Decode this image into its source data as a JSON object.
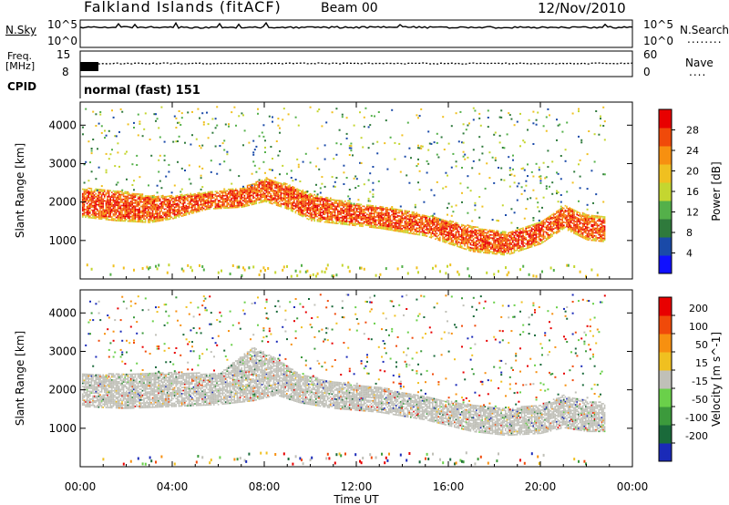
{
  "header": {
    "station": "Falkland Islands (fitACF)",
    "beam": "Beam 00",
    "date": "12/Nov/2010"
  },
  "panels": {
    "nsky": {
      "label": "N.Sky",
      "ticks": [
        "10^5",
        "10^0"
      ],
      "right_label": "N.Search",
      "right_ticks": [
        "10^5",
        "10^0"
      ],
      "right_dots": "........"
    },
    "freq": {
      "label_top": "Freq.",
      "label_bottom": "[MHz]",
      "ticks": [
        "15",
        "8"
      ],
      "right_label": "Nave",
      "right_ticks": [
        "60",
        "0"
      ],
      "right_dots": "...."
    },
    "cpid": {
      "label": "CPID",
      "value": "normal (fast) 151"
    }
  },
  "chart_data": [
    {
      "type": "heatmap",
      "title": "Power",
      "xlabel": "",
      "ylabel": "Slant Range [km]",
      "x_ticks": [
        "00:00",
        "04:00",
        "08:00",
        "12:00",
        "16:00",
        "20:00",
        "00:00"
      ],
      "y_ticks": [
        1000,
        2000,
        3000,
        4000
      ],
      "ylim": [
        0,
        4600
      ],
      "xlim_hours": [
        0,
        24
      ],
      "colorbar": {
        "label": "Power [dB]",
        "ticks": [
          4,
          8,
          12,
          16,
          20,
          24,
          28
        ],
        "range": [
          0,
          32
        ],
        "colors": [
          "#1010ff",
          "#1a4aa8",
          "#2f7a3c",
          "#54b04a",
          "#c4d630",
          "#f0c020",
          "#f79010",
          "#f04a0a",
          "#e80000"
        ]
      },
      "bands": [
        {
          "name": "main",
          "points": [
            [
              0.0,
              1600,
              2350
            ],
            [
              1.5,
              1500,
              2300
            ],
            [
              3.0,
              1450,
              2150
            ],
            [
              4.0,
              1550,
              2150
            ],
            [
              5.5,
              1800,
              2250
            ],
            [
              7.0,
              1850,
              2350
            ],
            [
              8.0,
              2000,
              2600
            ],
            [
              9.0,
              1800,
              2450
            ],
            [
              10.0,
              1500,
              2200
            ],
            [
              11.5,
              1400,
              2000
            ],
            [
              13.0,
              1300,
              1900
            ],
            [
              15.0,
              1100,
              1650
            ],
            [
              17.0,
              700,
              1350
            ],
            [
              18.5,
              600,
              1200
            ],
            [
              20.0,
              900,
              1500
            ],
            [
              21.0,
              1300,
              1900
            ],
            [
              22.0,
              1000,
              1650
            ],
            [
              22.8,
              950,
              1600
            ]
          ]
        }
      ]
    },
    {
      "type": "heatmap",
      "title": "Velocity",
      "xlabel": "Time UT",
      "ylabel": "Slant Range [km]",
      "x_ticks": [
        "00:00",
        "04:00",
        "08:00",
        "12:00",
        "16:00",
        "20:00",
        "00:00"
      ],
      "y_ticks": [
        1000,
        2000,
        3000,
        4000
      ],
      "ylim": [
        0,
        4600
      ],
      "xlim_hours": [
        0,
        24
      ],
      "colorbar": {
        "label": "Velocity [m s^-1]",
        "ticks": [
          200,
          100,
          50,
          15,
          -15,
          -50,
          -100,
          -200
        ],
        "colors": [
          "#1a2ab8",
          "#1a6a3a",
          "#3c9a3c",
          "#6ad04a",
          "#c0c0b8",
          "#f0c020",
          "#f79010",
          "#f04a0a",
          "#e80000"
        ]
      },
      "bands": [
        {
          "name": "ground-scatter",
          "points": [
            [
              0.0,
              1550,
              2400
            ],
            [
              2.0,
              1500,
              2400
            ],
            [
              4.0,
              1550,
              2450
            ],
            [
              6.0,
              1600,
              2400
            ],
            [
              7.5,
              1700,
              3100
            ],
            [
              8.5,
              1850,
              2800
            ],
            [
              9.5,
              1650,
              2400
            ],
            [
              11.0,
              1500,
              2200
            ],
            [
              13.0,
              1400,
              2050
            ],
            [
              15.0,
              1200,
              1800
            ],
            [
              17.0,
              900,
              1600
            ],
            [
              18.5,
              800,
              1500
            ],
            [
              20.0,
              850,
              1600
            ],
            [
              21.0,
              1000,
              1850
            ],
            [
              22.0,
              900,
              1700
            ],
            [
              22.8,
              900,
              1650
            ]
          ]
        }
      ]
    }
  ]
}
